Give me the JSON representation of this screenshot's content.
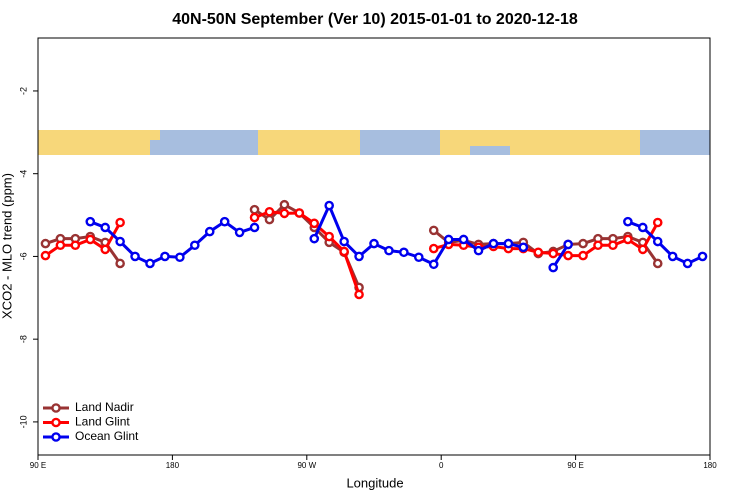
{
  "chart_data": {
    "type": "line",
    "title": "40N-50N September (Ver 10)   2015-01-01 to 2020-12-18",
    "x_label": "Longitude",
    "y_label": "XCO2 - MLO trend (ppm)",
    "x": [
      95,
      105,
      115,
      125,
      135,
      145,
      155,
      165,
      175,
      185,
      195,
      205,
      215,
      225,
      235,
      245,
      255,
      265,
      275,
      285,
      295,
      305,
      315,
      325,
      335,
      345,
      355,
      365,
      375,
      385,
      395,
      405,
      415,
      425,
      435,
      445,
      455,
      465,
      475,
      485,
      495,
      505,
      515,
      525,
      535
    ],
    "series": [
      {
        "name": "Land Nadir",
        "color": "#993333",
        "values": [
          -5.69,
          -5.57,
          -5.57,
          -5.52,
          -5.66,
          -6.17,
          null,
          null,
          null,
          null,
          null,
          null,
          null,
          null,
          -4.87,
          -5.11,
          -4.75,
          -4.95,
          -5.3,
          -5.66,
          -5.9,
          -6.75,
          null,
          null,
          null,
          null,
          -5.37,
          -5.66,
          -5.61,
          -5.71,
          -5.69,
          -5.69,
          -5.66,
          -5.93,
          -5.88,
          -5.71,
          -5.69,
          -5.57,
          -5.57,
          -5.52,
          -5.66,
          -6.17,
          null,
          null,
          null
        ]
      },
      {
        "name": "Land Glint",
        "color": "#ff0000",
        "values": [
          -5.98,
          -5.73,
          -5.73,
          -5.59,
          -5.83,
          -5.18,
          null,
          null,
          null,
          null,
          null,
          null,
          null,
          null,
          -5.06,
          -4.92,
          -4.96,
          -4.95,
          -5.2,
          -5.52,
          -5.88,
          -6.92,
          null,
          null,
          null,
          null,
          -5.81,
          -5.71,
          -5.73,
          -5.78,
          -5.76,
          -5.81,
          -5.81,
          -5.9,
          -5.93,
          -5.98,
          -5.98,
          -5.73,
          -5.73,
          -5.59,
          -5.83,
          -5.18,
          null,
          null,
          null
        ]
      },
      {
        "name": "Ocean Glint",
        "color": "#0000ee",
        "values": [
          null,
          null,
          null,
          -5.16,
          -5.3,
          -5.64,
          -6.0,
          -6.17,
          -6.0,
          -6.02,
          -5.73,
          -5.4,
          -5.16,
          -5.42,
          -5.3,
          null,
          null,
          null,
          -5.57,
          -4.77,
          -5.64,
          -6.0,
          -5.69,
          -5.86,
          -5.9,
          -6.02,
          -6.19,
          -5.59,
          -5.59,
          -5.86,
          -5.69,
          -5.69,
          -5.78,
          null,
          -6.27,
          -5.71,
          null,
          null,
          null,
          -5.16,
          -5.3,
          -5.64,
          -6.0,
          -6.17,
          -6.0
        ]
      }
    ],
    "xlim": [
      90,
      540
    ],
    "xticks": [
      {
        "value": 90,
        "label": "90 E"
      },
      {
        "value": 180,
        "label": "180"
      },
      {
        "value": 270,
        "label": "90 W"
      },
      {
        "value": 360,
        "label": "0"
      },
      {
        "value": 450,
        "label": "90 E"
      },
      {
        "value": 540,
        "label": "180"
      }
    ],
    "ylim": [
      -10.8,
      -0.72
    ],
    "yticks": [
      -2,
      -4,
      -6,
      -8,
      -10
    ],
    "legend": "bottom-left"
  }
}
